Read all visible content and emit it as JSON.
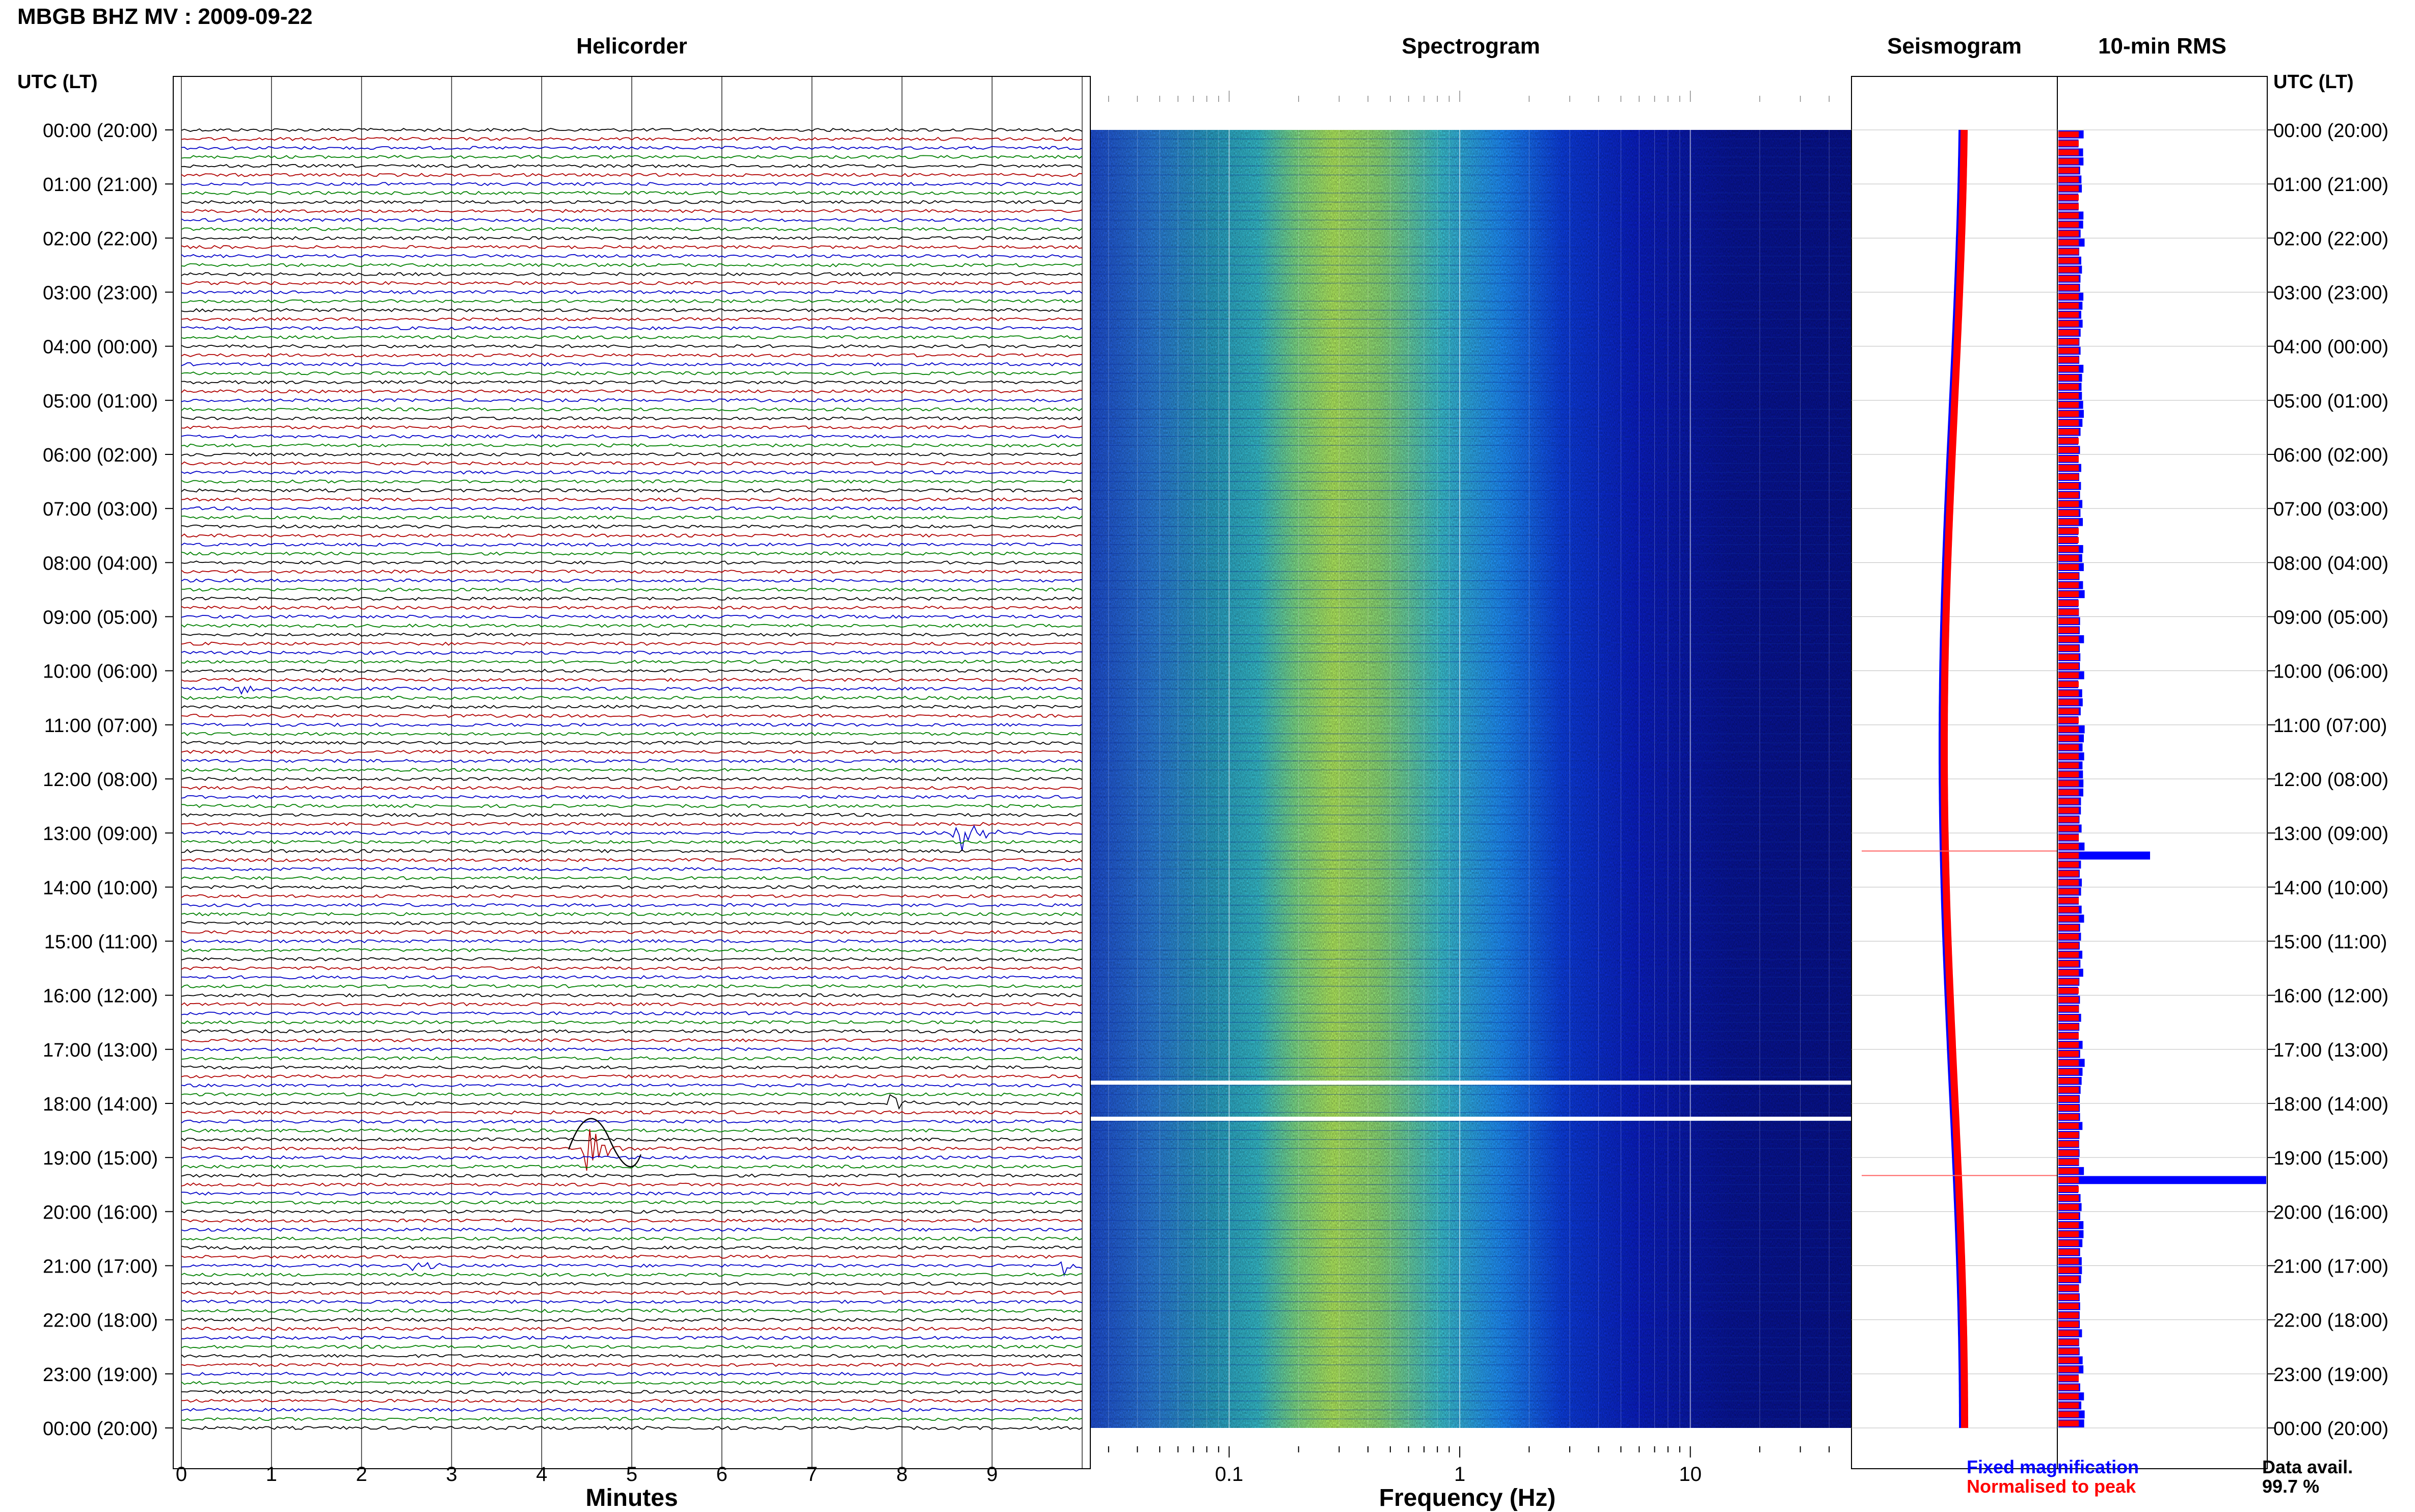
{
  "header": {
    "station_title": "MBGB BHZ MV : 2009-09-22",
    "utc_lt_label": "UTC (LT)"
  },
  "panels": {
    "helicorder": "Helicorder",
    "spectrogram": "Spectrogram",
    "seismogram": "Seismogram",
    "rms": "10-min RMS"
  },
  "hour_labels": [
    "00:00 (20:00)",
    "01:00 (21:00)",
    "02:00 (22:00)",
    "03:00 (23:00)",
    "04:00 (00:00)",
    "05:00 (01:00)",
    "06:00 (02:00)",
    "07:00 (03:00)",
    "08:00 (04:00)",
    "09:00 (05:00)",
    "10:00 (06:00)",
    "11:00 (07:00)",
    "12:00 (08:00)",
    "13:00 (09:00)",
    "14:00 (10:00)",
    "15:00 (11:00)",
    "16:00 (12:00)",
    "17:00 (13:00)",
    "18:00 (14:00)",
    "19:00 (15:00)",
    "20:00 (16:00)",
    "21:00 (17:00)",
    "22:00 (18:00)",
    "23:00 (19:00)",
    "00:00 (20:00)"
  ],
  "legend": {
    "fixed": "Fixed magnification",
    "normalised": "Normalised to peak",
    "fixed_color": "#0000ff",
    "normalised_color": "#ff0000"
  },
  "data_availability": {
    "label": "Data avail.",
    "value": "99.7 %"
  },
  "colors": {
    "trace_cycle": [
      "#000000",
      "#b00000",
      "#0000c8",
      "#008000"
    ],
    "grid": "#000000"
  },
  "chart_data": [
    {
      "type": "line",
      "name": "helicorder",
      "title": "Helicorder",
      "xlabel": "Minutes",
      "x_ticks": [
        "0",
        "1",
        "2",
        "3",
        "4",
        "5",
        "6",
        "7",
        "8",
        "9"
      ],
      "xlim": [
        0,
        10
      ],
      "ylim": [
        "00:00",
        "24:00"
      ],
      "traces_per_hour": 6,
      "events": [
        {
          "time": "13:00",
          "minute": 8.6,
          "amplitude": "large",
          "color": "#008000"
        },
        {
          "time": "18:50",
          "minute": 4.5,
          "amplitude": "large",
          "color": "#000000"
        },
        {
          "time": "18:00",
          "minute": 7.9,
          "amplitude": "medium",
          "color": "#b00000"
        },
        {
          "time": "21:00",
          "minute": 9.8,
          "amplitude": "medium",
          "color": "#b00000"
        },
        {
          "time": "10:20",
          "minute": 0.7,
          "amplitude": "small",
          "color": "#0000c8"
        },
        {
          "time": "21:00",
          "minute": 2.6,
          "amplitude": "small",
          "color": "#0000c8"
        }
      ]
    },
    {
      "type": "heatmap",
      "name": "spectrogram",
      "title": "Spectrogram",
      "xlabel": "Frequency (Hz)",
      "x_scale": "log",
      "x_ticks": [
        "0.1",
        "1",
        "10"
      ],
      "xlim": [
        0.025,
        50
      ],
      "ylim": [
        "00:00",
        "24:00"
      ],
      "data_gaps": [
        "17:20",
        "18:00"
      ],
      "colormap": [
        "#00008b",
        "#0022dd",
        "#1e90ff",
        "#40e0d0",
        "#adff2f"
      ]
    },
    {
      "type": "line",
      "name": "seismogram",
      "title": "Seismogram",
      "series": [
        {
          "name": "Fixed magnification",
          "color": "#0000ff"
        },
        {
          "name": "Normalised to peak",
          "color": "#ff0000"
        }
      ],
      "spikes": [
        "13:20",
        "19:20"
      ]
    },
    {
      "type": "bar",
      "name": "rms",
      "title": "10-min RMS",
      "orientation": "horizontal",
      "bins_per_hour": 6,
      "series": [
        {
          "name": "Fixed magnification",
          "color": "#0000ff"
        },
        {
          "name": "Normalised to peak",
          "color": "#ff0000"
        }
      ],
      "notable_bins": [
        {
          "time": "13:20",
          "relative_rms": 1.0
        },
        {
          "time": "19:20",
          "relative_rms": 3.3
        }
      ],
      "baseline_relative_rms": 0.25
    }
  ]
}
